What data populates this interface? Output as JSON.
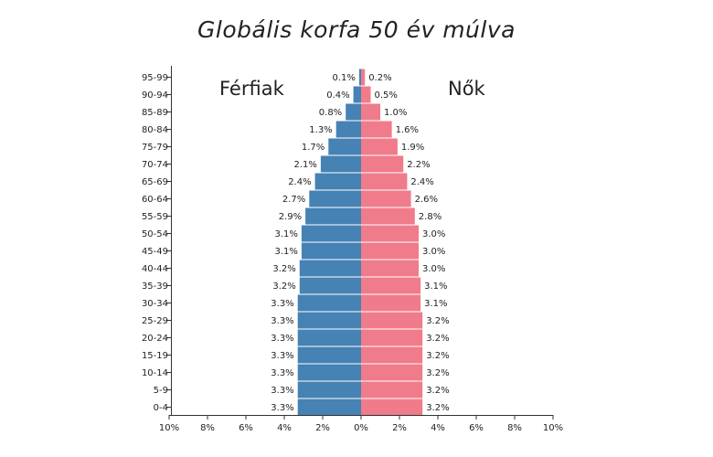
{
  "title": "Globális korfa 50 év múlva",
  "colors": {
    "male": "#4682b4",
    "female": "#f07b8a",
    "axis": "#333333"
  },
  "chart_data": {
    "type": "bar",
    "orientation": "horizontal-population-pyramid",
    "title": "Globális korfa 50 év múlva",
    "categories": [
      "0-4",
      "5-9",
      "10-14",
      "15-19",
      "20-24",
      "25-29",
      "30-34",
      "35-39",
      "40-44",
      "45-49",
      "50-54",
      "55-59",
      "60-64",
      "65-69",
      "70-74",
      "75-79",
      "80-84",
      "85-89",
      "90-94",
      "95-99"
    ],
    "series": [
      {
        "name": "Férfiak",
        "side": "left",
        "values": [
          3.3,
          3.3,
          3.3,
          3.3,
          3.3,
          3.3,
          3.3,
          3.2,
          3.2,
          3.1,
          3.1,
          2.9,
          2.7,
          2.4,
          2.1,
          1.7,
          1.3,
          0.8,
          0.4,
          0.1
        ]
      },
      {
        "name": "Nők",
        "side": "right",
        "values": [
          3.2,
          3.2,
          3.2,
          3.2,
          3.2,
          3.2,
          3.1,
          3.1,
          3.0,
          3.0,
          3.0,
          2.8,
          2.6,
          2.4,
          2.2,
          1.9,
          1.6,
          1.0,
          0.5,
          0.2
        ]
      }
    ],
    "xlim": [
      -10,
      10
    ],
    "xticks": [
      -10,
      -8,
      -6,
      -4,
      -2,
      0,
      2,
      4,
      6,
      8,
      10
    ],
    "xtick_labels": [
      "10%",
      "8%",
      "6%",
      "4%",
      "2%",
      "0%",
      "2%",
      "4%",
      "6%",
      "8%",
      "10%"
    ],
    "legend": {
      "male": "Férfiak",
      "female": "Nők"
    },
    "value_suffix": "%"
  }
}
